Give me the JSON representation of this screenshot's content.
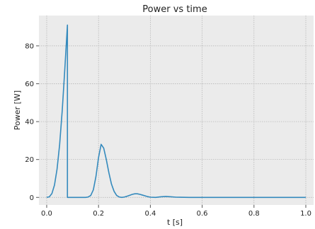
{
  "chart_data": {
    "type": "line",
    "title": "Power vs time",
    "xlabel": "t [s]",
    "ylabel": "Power [W]",
    "xlim": [
      -0.03,
      1.03
    ],
    "ylim": [
      -4,
      96
    ],
    "x_ticks": [
      0.0,
      0.2,
      0.4,
      0.6,
      0.8,
      1.0
    ],
    "x_tick_labels": [
      "0.0",
      "0.2",
      "0.4",
      "0.6",
      "0.8",
      "1.0"
    ],
    "y_ticks": [
      0,
      20,
      40,
      60,
      80
    ],
    "y_tick_labels": [
      "0",
      "20",
      "40",
      "60",
      "80"
    ],
    "grid": true,
    "background": "#ebebeb",
    "grid_color": "#b0b0b0",
    "series": [
      {
        "color": "#348abd",
        "x": [
          0.0,
          0.01,
          0.02,
          0.03,
          0.04,
          0.05,
          0.06,
          0.07,
          0.08,
          0.08,
          0.09,
          0.1,
          0.11,
          0.12,
          0.13,
          0.14,
          0.15,
          0.16,
          0.17,
          0.18,
          0.19,
          0.2,
          0.21,
          0.22,
          0.23,
          0.24,
          0.25,
          0.26,
          0.27,
          0.28,
          0.29,
          0.3,
          0.31,
          0.32,
          0.33,
          0.34,
          0.35,
          0.36,
          0.37,
          0.38,
          0.39,
          0.4,
          0.42,
          0.44,
          0.46,
          0.48,
          0.5,
          0.55,
          0.6,
          0.7,
          0.8,
          0.9,
          1.0
        ],
        "y": [
          0.0,
          0.3,
          2.0,
          6.5,
          15.0,
          28.0,
          46.0,
          68.0,
          91.0,
          0.0,
          0.0,
          0.0,
          0.0,
          0.0,
          0.0,
          0.0,
          0.0,
          0.2,
          1.0,
          4.0,
          11.0,
          21.0,
          28.0,
          26.0,
          20.0,
          13.0,
          7.0,
          3.2,
          1.0,
          0.2,
          0.0,
          0.2,
          0.6,
          1.1,
          1.6,
          1.9,
          1.9,
          1.6,
          1.2,
          0.8,
          0.4,
          0.1,
          0.0,
          0.3,
          0.5,
          0.3,
          0.1,
          0.0,
          0.0,
          0.0,
          0.0,
          0.0,
          0.0
        ]
      }
    ]
  }
}
